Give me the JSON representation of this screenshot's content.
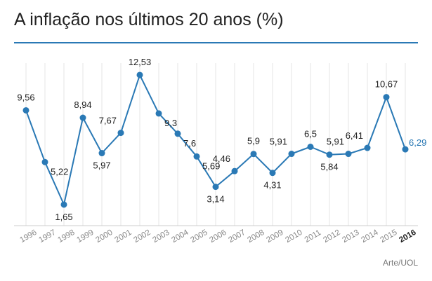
{
  "title": "A inflação nos últimos 20 anos (%)",
  "credit": "Arte/UOL",
  "colors": {
    "line": "#2a79b5",
    "point": "#2a79b5",
    "highlight_label": "#2a79b5",
    "label": "#222222",
    "tick": "#888888",
    "tick_highlight": "#222222",
    "grid": "#e4e4e4",
    "baseline": "#cccccc"
  },
  "chart_data": {
    "type": "line",
    "title": "A inflação nos últimos 20 anos (%)",
    "xlabel": "",
    "ylabel": "",
    "grid": "vertical",
    "legend": "none",
    "ylim": [
      0,
      14
    ],
    "categories": [
      "1996",
      "1997",
      "1998",
      "1999",
      "2000",
      "2001",
      "2002",
      "2003",
      "2004",
      "2005",
      "2006",
      "2007",
      "2008",
      "2009",
      "2010",
      "2011",
      "2012",
      "2013",
      "2014",
      "2015",
      "2016"
    ],
    "values": [
      9.56,
      5.22,
      1.65,
      8.94,
      5.97,
      7.67,
      12.53,
      9.3,
      7.6,
      5.69,
      3.14,
      4.46,
      5.9,
      4.31,
      5.91,
      6.5,
      5.84,
      5.91,
      6.41,
      10.67,
      6.29
    ],
    "labels": [
      "9,56",
      "5,22",
      "1,65",
      "8,94",
      "5,97",
      "7,67",
      "12,53",
      "9,3",
      "7,6",
      "5,69",
      "3,14",
      "4,46",
      "5,9",
      "4,31",
      "5,91",
      "6,5",
      "5,84",
      "5,91",
      "6,41",
      "10,67",
      "6,29"
    ],
    "highlight_index": 20
  }
}
